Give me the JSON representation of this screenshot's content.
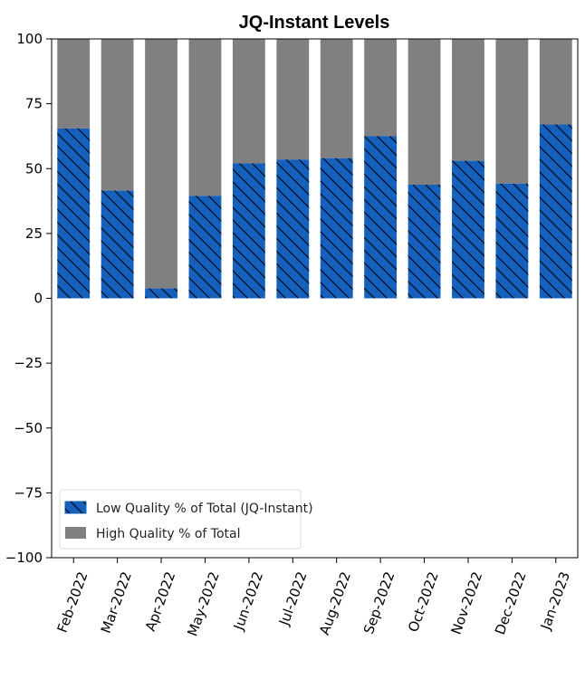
{
  "chart_data": {
    "type": "bar",
    "stacked": true,
    "title": "JQ-Instant Levels",
    "xlabel": "",
    "ylabel": "",
    "ylim": [
      -100,
      100
    ],
    "yticks": [
      100,
      75,
      50,
      25,
      0,
      -25,
      -50,
      -75,
      -100
    ],
    "ytick_labels": [
      "100",
      "75",
      "50",
      "25",
      "0",
      "−25",
      "−50",
      "−75",
      "−100"
    ],
    "categories": [
      "Feb-2022",
      "Mar-2022",
      "Apr-2022",
      "May-2022",
      "Jun-2022",
      "Jul-2022",
      "Aug-2022",
      "Sep-2022",
      "Oct-2022",
      "Nov-2022",
      "Dec-2022",
      "Jan-2023"
    ],
    "series": [
      {
        "name": "Low Quality % of Total (JQ-Instant)",
        "color": "#1560bd",
        "hatch": "diagonal",
        "values": [
          65.5,
          41.5,
          3.8,
          39.5,
          52,
          53.5,
          54,
          62.5,
          43.8,
          53,
          44.2,
          67
        ]
      },
      {
        "name": "High Quality % of Total",
        "color": "#808080",
        "values": [
          34.5,
          58.5,
          96.2,
          60.5,
          48,
          46.5,
          46,
          37.5,
          56.2,
          47,
          55.8,
          33
        ]
      }
    ],
    "legend": {
      "position": "lower-left"
    },
    "grid": false
  }
}
